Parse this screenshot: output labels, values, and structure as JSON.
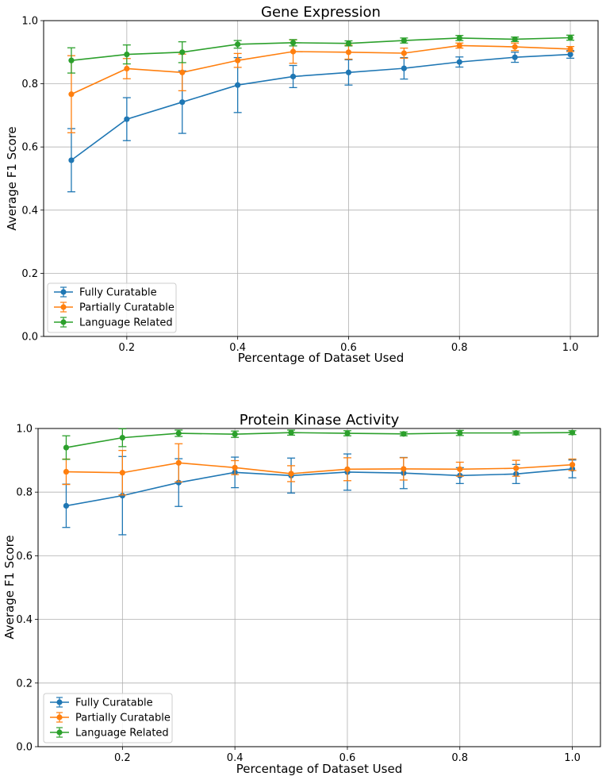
{
  "chart_data": [
    {
      "type": "line",
      "title": "Gene Expression",
      "xlabel": "Percentage of Dataset Used",
      "ylabel": "Average F1 Score",
      "xlim": [
        0.05,
        1.05
      ],
      "ylim": [
        0.0,
        1.0
      ],
      "xticks": [
        "0.2",
        "0.4",
        "0.6",
        "0.8",
        "1.0"
      ],
      "yticks": [
        "0.0",
        "0.2",
        "0.4",
        "0.6",
        "0.8",
        "1.0"
      ],
      "grid": true,
      "legend_position": "lower-left",
      "x": [
        0.1,
        0.2,
        0.3,
        0.4,
        0.5,
        0.6,
        0.7,
        0.8,
        0.9,
        1.0
      ],
      "series": [
        {
          "name": "Fully Curatable",
          "color": "#1f77b4",
          "values": [
            0.558,
            0.688,
            0.742,
            0.796,
            0.823,
            0.836,
            0.849,
            0.869,
            0.884,
            0.893
          ],
          "errors": [
            0.1,
            0.068,
            0.099,
            0.087,
            0.035,
            0.04,
            0.034,
            0.016,
            0.016,
            0.012
          ]
        },
        {
          "name": "Partially Curatable",
          "color": "#ff7f0e",
          "values": [
            0.767,
            0.848,
            0.836,
            0.874,
            0.902,
            0.9,
            0.897,
            0.921,
            0.917,
            0.91
          ],
          "errors": [
            0.122,
            0.032,
            0.058,
            0.022,
            0.037,
            0.022,
            0.016,
            0.008,
            0.012,
            0.008
          ]
        },
        {
          "name": "Language Related",
          "color": "#2ca02c",
          "values": [
            0.874,
            0.893,
            0.9,
            0.925,
            0.93,
            0.928,
            0.937,
            0.945,
            0.941,
            0.946
          ],
          "errors": [
            0.04,
            0.03,
            0.033,
            0.012,
            0.01,
            0.008,
            0.008,
            0.008,
            0.007,
            0.008
          ]
        }
      ]
    },
    {
      "type": "line",
      "title": "Protein Kinase Activity",
      "xlabel": "Percentage of Dataset Used",
      "ylabel": "Average F1 Score",
      "xlim": [
        0.05,
        1.05
      ],
      "ylim": [
        0.0,
        1.0
      ],
      "xticks": [
        "0.2",
        "0.4",
        "0.6",
        "0.8",
        "1.0"
      ],
      "yticks": [
        "0.0",
        "0.2",
        "0.4",
        "0.6",
        "0.8",
        "1.0"
      ],
      "grid": true,
      "legend_position": "lower-left",
      "x": [
        0.1,
        0.2,
        0.3,
        0.4,
        0.5,
        0.6,
        0.7,
        0.8,
        0.9,
        1.0
      ],
      "series": [
        {
          "name": "Fully Curatable",
          "color": "#1f77b4",
          "values": [
            0.757,
            0.789,
            0.83,
            0.862,
            0.852,
            0.863,
            0.86,
            0.852,
            0.857,
            0.873
          ],
          "errors": [
            0.068,
            0.123,
            0.075,
            0.048,
            0.055,
            0.057,
            0.049,
            0.025,
            0.03,
            0.028
          ]
        },
        {
          "name": "Partially Curatable",
          "color": "#ff7f0e",
          "values": [
            0.864,
            0.861,
            0.892,
            0.877,
            0.858,
            0.872,
            0.873,
            0.872,
            0.875,
            0.886
          ],
          "errors": [
            0.04,
            0.07,
            0.06,
            0.022,
            0.025,
            0.036,
            0.035,
            0.022,
            0.025,
            0.018
          ]
        },
        {
          "name": "Language Related",
          "color": "#2ca02c",
          "values": [
            0.94,
            0.971,
            0.985,
            0.982,
            0.987,
            0.985,
            0.983,
            0.986,
            0.986,
            0.987
          ],
          "errors": [
            0.037,
            0.028,
            0.01,
            0.01,
            0.008,
            0.008,
            0.006,
            0.008,
            0.006,
            0.006
          ]
        }
      ]
    }
  ]
}
